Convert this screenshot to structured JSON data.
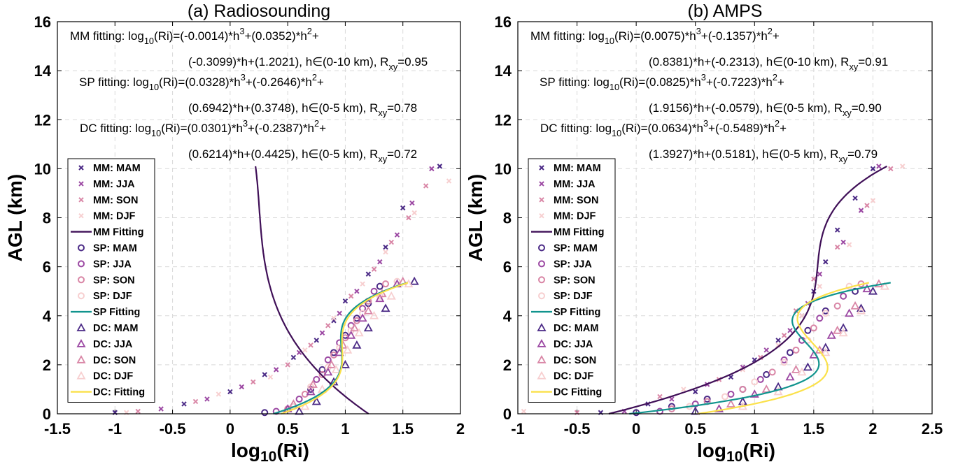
{
  "palette": {
    "MAM": "#4b2a86",
    "JJA": "#9c49a3",
    "SON": "#d986a6",
    "DJF": "#f7cfd0",
    "MM_fit": "#3f0f57",
    "SP_fit": "#11948e",
    "DC_fit": "#fbe14a"
  },
  "chart_data": [
    {
      "type": "scatter",
      "title": "(a) Radiosounding",
      "xlabel_base": "log",
      "xlabel_sub": "10",
      "xlabel_tail": "(Ri)",
      "ylabel": "AGL (km)",
      "xlim": [
        -1.5,
        2
      ],
      "ylim": [
        0,
        16
      ],
      "xticks": [
        -1.5,
        -1,
        -0.5,
        0,
        0.5,
        1,
        1.5,
        2
      ],
      "xtick_labels": [
        "-1.5",
        "-1",
        "-0.5",
        "0",
        "0.5",
        "1",
        "1.5",
        "2"
      ],
      "yticks": [
        0,
        2,
        4,
        6,
        8,
        10,
        12,
        14,
        16
      ],
      "ytick_labels": [
        "0",
        "2",
        "4",
        "6",
        "8",
        "10",
        "12",
        "14",
        "16"
      ],
      "grid": true,
      "equations": [
        {
          "head": "MM fitting: log",
          "sub": "10",
          "body": "(Ri)=(-0.0014)*h",
          "sup1": "3",
          "mid": "+(0.0352)*h",
          "sup2": "2",
          "end": "+",
          "line2": "(-0.3099)*h+(1.2021), h∈(0-10 km), R",
          "rsub": "xy",
          "rval": "=0.95"
        },
        {
          "head": "SP fitting: log",
          "sub": "10",
          "body": "(Ri)=(0.0328)*h",
          "sup1": "3",
          "mid": "+(-0.2646)*h",
          "sup2": "2",
          "end": "+",
          "line2": "(0.6942)*h+(0.3748), h∈(0-5 km), R",
          "rsub": "xy",
          "rval": "=0.78"
        },
        {
          "head": "DC fitting: log",
          "sub": "10",
          "body": "(Ri)=(0.0301)*h",
          "sup1": "3",
          "mid": "+(-0.2387)*h",
          "sup2": "2",
          "end": "+",
          "line2": "(0.6214)*h+(0.4425), h∈(0-5 km), R",
          "rsub": "xy",
          "rval": "=0.72"
        }
      ],
      "legend": [
        "MM: MAM",
        "MM: JJA",
        "MM: SON",
        "MM: DJF",
        "MM Fitting",
        "SP: MAM",
        "SP: JJA",
        "SP: SON",
        "SP: DJF",
        "SP Fitting",
        "DC: MAM",
        "DC: JJA",
        "DC: SON",
        "DC: DJF",
        "DC: Fitting"
      ],
      "legend_placement": "left",
      "fits": {
        "MM": {
          "coef": [
            -0.0014,
            0.0352,
            -0.3099,
            1.2021
          ],
          "hmax": 10.1
        },
        "SP": {
          "coef": [
            0.0328,
            -0.2646,
            0.6942,
            0.3748
          ],
          "hmax": 5.35
        },
        "DC": {
          "coef": [
            0.0301,
            -0.2387,
            0.6214,
            0.4425
          ],
          "hmax": 5.35
        }
      },
      "series": [
        {
          "name": "MM: MAM",
          "x": [
            -1.0,
            -0.4,
            0.0,
            0.3,
            0.55,
            0.75,
            0.9,
            1.0,
            1.2,
            1.35,
            1.5,
            1.82
          ],
          "y": [
            0.05,
            0.4,
            0.9,
            1.6,
            2.3,
            3.0,
            3.8,
            4.6,
            5.7,
            6.8,
            8.4,
            10.1
          ]
        },
        {
          "name": "MM: JJA",
          "x": [
            -0.6,
            -0.2,
            0.1,
            0.4,
            0.6,
            0.8,
            0.95,
            1.1,
            1.3,
            1.45,
            1.58,
            1.75
          ],
          "y": [
            0.2,
            0.6,
            1.1,
            1.8,
            2.5,
            3.3,
            4.1,
            5.0,
            6.2,
            7.3,
            8.6,
            10.0
          ]
        },
        {
          "name": "MM: SON",
          "x": [
            -0.8,
            -0.3,
            0.2,
            0.5,
            0.7,
            0.85,
            1.05,
            1.25,
            1.4,
            1.55,
            1.7
          ],
          "y": [
            0.1,
            0.5,
            1.3,
            2.0,
            2.8,
            3.6,
            4.8,
            5.9,
            7.0,
            8.0,
            9.3
          ]
        },
        {
          "name": "MM: DJF",
          "x": [
            -0.9,
            -0.1,
            0.35,
            0.65,
            0.9,
            1.15,
            1.35,
            1.6,
            1.9
          ],
          "y": [
            0.05,
            0.8,
            1.5,
            2.6,
            3.9,
            5.3,
            6.6,
            8.2,
            9.5
          ]
        },
        {
          "name": "SP: MAM",
          "x": [
            0.3,
            0.55,
            0.7,
            0.8,
            0.9,
            1.0,
            1.1,
            1.2,
            1.3
          ],
          "y": [
            0.05,
            0.3,
            1.0,
            1.8,
            2.5,
            3.2,
            3.9,
            4.5,
            5.2
          ]
        },
        {
          "name": "SP: JJA",
          "x": [
            0.4,
            0.6,
            0.75,
            0.85,
            0.95,
            1.05,
            1.15,
            1.25
          ],
          "y": [
            0.1,
            0.6,
            1.4,
            2.2,
            2.9,
            3.6,
            4.3,
            5.0
          ]
        },
        {
          "name": "SP: SON",
          "x": [
            0.5,
            0.65,
            0.8,
            0.9,
            1.0,
            1.1,
            1.2,
            1.35
          ],
          "y": [
            0.2,
            0.8,
            1.6,
            2.4,
            3.1,
            3.8,
            4.6,
            5.3
          ]
        },
        {
          "name": "SP: DJF",
          "x": [
            0.55,
            0.7,
            0.85,
            0.95,
            1.05,
            1.15,
            1.3,
            1.45
          ],
          "y": [
            0.3,
            1.1,
            1.9,
            2.7,
            3.4,
            4.1,
            4.8,
            5.4
          ]
        },
        {
          "name": "DC: MAM",
          "x": [
            0.6,
            0.75,
            0.9,
            1.0,
            1.1,
            1.2,
            1.35,
            1.6
          ],
          "y": [
            0.1,
            0.5,
            1.3,
            2.0,
            2.8,
            3.5,
            4.3,
            5.4
          ]
        },
        {
          "name": "DC: JJA",
          "x": [
            0.5,
            0.7,
            0.85,
            0.95,
            1.05,
            1.15,
            1.3,
            1.45
          ],
          "y": [
            0.2,
            0.9,
            1.7,
            2.5,
            3.2,
            3.9,
            4.7,
            5.3
          ]
        },
        {
          "name": "DC: SON",
          "x": [
            0.55,
            0.72,
            0.88,
            0.98,
            1.08,
            1.2,
            1.32,
            1.5
          ],
          "y": [
            0.4,
            1.2,
            2.0,
            2.8,
            3.5,
            4.2,
            4.9,
            5.4
          ]
        },
        {
          "name": "DC: DJF",
          "x": [
            0.65,
            0.8,
            0.92,
            1.02,
            1.12,
            1.25,
            1.4,
            1.55
          ],
          "y": [
            0.3,
            1.0,
            1.8,
            2.6,
            3.3,
            4.0,
            4.8,
            5.3
          ]
        }
      ]
    },
    {
      "type": "scatter",
      "title": "(b) AMPS",
      "xlabel_base": "log",
      "xlabel_sub": "10",
      "xlabel_tail": "(Ri)",
      "ylabel": "AGL (km)",
      "xlim": [
        -1,
        2.5
      ],
      "ylim": [
        0,
        16
      ],
      "xticks": [
        -1,
        -0.5,
        0,
        0.5,
        1,
        1.5,
        2,
        2.5
      ],
      "xtick_labels": [
        "-1",
        "-0.5",
        "0",
        "0.5",
        "1",
        "1.5",
        "2",
        "2.5"
      ],
      "yticks": [
        0,
        2,
        4,
        6,
        8,
        10,
        12,
        14,
        16
      ],
      "ytick_labels": [
        "0",
        "2",
        "4",
        "6",
        "8",
        "10",
        "12",
        "14",
        "16"
      ],
      "grid": true,
      "equations": [
        {
          "head": "MM fitting: log",
          "sub": "10",
          "body": "(Ri)=(0.0075)*h",
          "sup1": "3",
          "mid": "+(-0.1357)*h",
          "sup2": "2",
          "end": "+",
          "line2": "(0.8381)*h+(-0.2313), h∈(0-10 km), R",
          "rsub": "xy",
          "rval": "=0.91"
        },
        {
          "head": "SP fitting: log",
          "sub": "10",
          "body": "(Ri)=(0.0825)*h",
          "sup1": "3",
          "mid": "+(-0.7223)*h",
          "sup2": "2",
          "end": "+",
          "line2": "(1.9156)*h+(-0.0579), h∈(0-5 km), R",
          "rsub": "xy",
          "rval": "=0.90"
        },
        {
          "head": "DC fitting: log",
          "sub": "10",
          "body": "(Ri)=(0.0634)*h",
          "sup1": "3",
          "mid": "+(-0.5489)*h",
          "sup2": "2",
          "end": "+",
          "line2": "(1.3927)*h+(0.5181), h∈(0-5 km), R",
          "rsub": "xy",
          "rval": "=0.79"
        }
      ],
      "legend": [
        "MM: MAM",
        "MM: JJA",
        "MM: SON",
        "MM: DJF",
        "MM Fitting",
        "SP: MAM",
        "SP: JJA",
        "SP: SON",
        "SP: DJF",
        "SP Fitting",
        "DC: MAM",
        "DC: JJA",
        "DC: SON",
        "DC: DJF",
        "DC Fitting"
      ],
      "legend_placement": "left",
      "fits": {
        "MM": {
          "coef": [
            0.0075,
            -0.1357,
            0.8381,
            -0.2313
          ],
          "hmax": 10.1
        },
        "SP": {
          "coef": [
            0.0825,
            -0.7223,
            1.9156,
            -0.0579
          ],
          "hmax": 5.35
        },
        "DC": {
          "coef": [
            0.0634,
            -0.5489,
            1.3927,
            0.5181
          ],
          "hmax": 5.35
        }
      },
      "series": [
        {
          "name": "MM: MAM",
          "x": [
            -0.3,
            0.1,
            0.5,
            0.8,
            1.0,
            1.2,
            1.4,
            1.5,
            1.6,
            1.7,
            1.85,
            2.0
          ],
          "y": [
            0.05,
            0.4,
            0.9,
            1.5,
            2.2,
            3.0,
            4.0,
            5.0,
            6.2,
            7.5,
            8.8,
            10.0
          ]
        },
        {
          "name": "MM: JJA",
          "x": [
            -0.1,
            0.3,
            0.6,
            0.9,
            1.1,
            1.3,
            1.45,
            1.55,
            1.75,
            1.9,
            2.05
          ],
          "y": [
            0.1,
            0.6,
            1.2,
            1.9,
            2.6,
            3.4,
            4.5,
            5.7,
            7.0,
            8.3,
            10.1
          ]
        },
        {
          "name": "MM: SON",
          "x": [
            -0.5,
            0.2,
            0.7,
            1.05,
            1.25,
            1.35,
            1.5,
            1.7,
            1.95,
            2.15
          ],
          "y": [
            0.05,
            0.7,
            1.4,
            2.3,
            3.2,
            4.2,
            5.5,
            6.8,
            8.5,
            10.0
          ]
        },
        {
          "name": "MM: DJF",
          "x": [
            -0.95,
            0.4,
            0.9,
            1.2,
            1.4,
            1.55,
            1.8,
            2.0,
            2.25
          ],
          "y": [
            0.1,
            1.0,
            1.8,
            2.8,
            4.0,
            5.2,
            6.9,
            8.7,
            10.1
          ]
        },
        {
          "name": "SP: MAM",
          "x": [
            0.0,
            0.3,
            0.6,
            0.9,
            1.1,
            1.3,
            1.45,
            1.6,
            1.85
          ],
          "y": [
            0.05,
            0.3,
            0.6,
            1.0,
            1.6,
            2.5,
            3.4,
            4.2,
            5.0
          ]
        },
        {
          "name": "SP: JJA",
          "x": [
            0.2,
            0.5,
            0.8,
            1.05,
            1.25,
            1.4,
            1.55,
            1.75
          ],
          "y": [
            0.1,
            0.4,
            0.8,
            1.4,
            2.2,
            3.0,
            3.9,
            4.8
          ]
        },
        {
          "name": "SP: SON",
          "x": [
            0.3,
            0.6,
            0.9,
            1.15,
            1.35,
            1.5,
            1.7,
            1.9
          ],
          "y": [
            0.2,
            0.5,
            1.0,
            1.7,
            2.6,
            3.5,
            4.4,
            5.3
          ]
        },
        {
          "name": "SP: DJF",
          "x": [
            0.45,
            0.75,
            1.0,
            1.25,
            1.45,
            1.6,
            1.8
          ],
          "y": [
            0.3,
            0.7,
            1.3,
            2.1,
            3.0,
            4.1,
            5.2
          ]
        },
        {
          "name": "DC: MAM",
          "x": [
            0.5,
            0.9,
            1.2,
            1.45,
            1.6,
            1.75,
            1.9,
            2.0
          ],
          "y": [
            0.1,
            0.5,
            1.1,
            1.9,
            2.7,
            3.5,
            4.3,
            5.0
          ]
        },
        {
          "name": "DC: JJA",
          "x": [
            0.7,
            1.0,
            1.3,
            1.5,
            1.65,
            1.8,
            1.95
          ],
          "y": [
            0.2,
            0.8,
            1.5,
            2.4,
            3.2,
            4.1,
            5.1
          ]
        },
        {
          "name": "DC: SON",
          "x": [
            0.8,
            1.1,
            1.35,
            1.55,
            1.7,
            1.85,
            2.05
          ],
          "y": [
            0.4,
            1.0,
            1.8,
            2.6,
            3.4,
            4.4,
            5.3
          ]
        },
        {
          "name": "DC: DJF",
          "x": [
            0.9,
            1.2,
            1.4,
            1.6,
            1.75,
            1.9,
            2.1
          ],
          "y": [
            0.3,
            0.9,
            1.7,
            2.5,
            3.3,
            4.2,
            5.2
          ]
        }
      ]
    }
  ]
}
